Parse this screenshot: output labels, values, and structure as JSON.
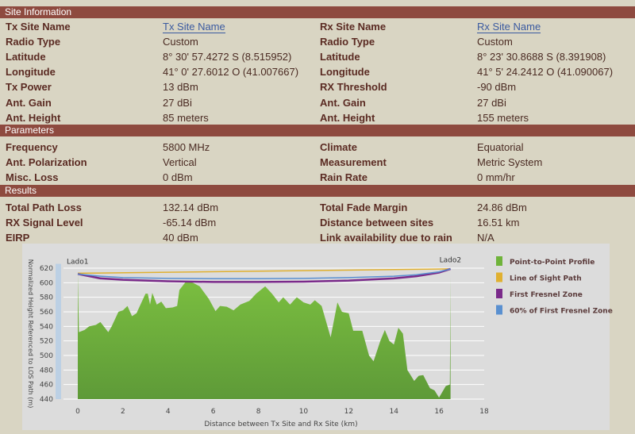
{
  "sections": {
    "site": "Site Information",
    "params": "Parameters",
    "results": "Results"
  },
  "site_rows": [
    {
      "l1": "Tx Site Name",
      "v1": "Tx Site Name",
      "l2": "Rx Site Name",
      "v2": "Rx Site Name",
      "link": true
    },
    {
      "l1": "Radio Type",
      "v1": "Custom",
      "l2": "Radio Type",
      "v2": "Custom"
    },
    {
      "l1": "Latitude",
      "v1": "8° 30' 57.4272 S (8.515952)",
      "l2": "Latitude",
      "v2": "8° 23' 30.8688 S (8.391908)"
    },
    {
      "l1": "Longitude",
      "v1": "41° 0' 27.6012 O (41.007667)",
      "l2": "Longitude",
      "v2": "41° 5' 24.2412 O (41.090067)"
    },
    {
      "l1": "Tx Power",
      "v1": "13 dBm",
      "l2": "RX Threshold",
      "v2": "-90 dBm"
    },
    {
      "l1": "Ant. Gain",
      "v1": "27 dBi",
      "l2": "Ant. Gain",
      "v2": "27 dBi"
    },
    {
      "l1": "Ant. Height",
      "v1": "85 meters",
      "l2": "Ant. Height",
      "v2": "155 meters"
    }
  ],
  "param_rows": [
    {
      "l1": "Frequency",
      "v1": "5800 MHz",
      "l2": "Climate",
      "v2": "Equatorial"
    },
    {
      "l1": "Ant. Polarization",
      "v1": "Vertical",
      "l2": "Measurement",
      "v2": "Metric System"
    },
    {
      "l1": "Misc. Loss",
      "v1": "0 dBm",
      "l2": "Rain Rate",
      "v2": "0 mm/hr"
    }
  ],
  "result_rows": [
    {
      "l1": "Total Path Loss",
      "v1": "132.14 dBm",
      "l2": "Total Fade Margin",
      "v2": "24.86 dBm"
    },
    {
      "l1": "RX Signal Level",
      "v1": "-65.14 dBm",
      "l2": "Distance between sites",
      "v2": "16.51 km"
    },
    {
      "l1": "EIRP",
      "v1": "40 dBm",
      "l2": "Link availability due to rain",
      "v2": "N/A"
    }
  ],
  "chart_data": {
    "type": "area",
    "xlabel": "Distance between Tx Site and Rx Site (km)",
    "ylabel": "Normalized Height Referenced to LOS Path (m)",
    "xlim": [
      0,
      18
    ],
    "ylim": [
      440,
      620
    ],
    "xticks": [
      0,
      2,
      4,
      6,
      8,
      10,
      12,
      14,
      16,
      18
    ],
    "yticks": [
      440,
      460,
      480,
      500,
      520,
      540,
      560,
      580,
      600,
      620
    ],
    "grid": true,
    "legend_placement": "right",
    "annotations": [
      "Lado1",
      "Lado2"
    ],
    "series": [
      {
        "name": "Point-to-Point Profile",
        "color": "#6fb33a",
        "x": [
          0,
          0.05,
          0.3,
          0.5,
          0.8,
          1.0,
          1.2,
          1.35,
          1.5,
          1.8,
          2.0,
          2.2,
          2.4,
          2.6,
          3.0,
          3.1,
          3.2,
          3.3,
          3.5,
          3.7,
          3.9,
          4.2,
          4.4,
          4.5,
          4.8,
          5.1,
          5.4,
          5.8,
          6.1,
          6.3,
          6.6,
          6.9,
          7.2,
          7.6,
          7.9,
          8.3,
          8.6,
          8.9,
          9.1,
          9.4,
          9.7,
          10.0,
          10.3,
          10.5,
          10.8,
          11.2,
          11.5,
          11.7,
          12.0,
          12.2,
          12.6,
          12.9,
          13.1,
          13.4,
          13.6,
          13.8,
          14.0,
          14.2,
          14.4,
          14.6,
          14.9,
          15.1,
          15.3,
          15.6,
          15.8,
          16.0,
          16.3,
          16.48,
          16.51
        ],
        "y": [
          612,
          532,
          535,
          540,
          542,
          546,
          538,
          532,
          540,
          560,
          562,
          568,
          554,
          558,
          585,
          585,
          570,
          586,
          570,
          574,
          565,
          566,
          568,
          590,
          602,
          600,
          595,
          578,
          561,
          568,
          567,
          562,
          570,
          575,
          585,
          595,
          585,
          573,
          580,
          570,
          580,
          573,
          570,
          576,
          568,
          525,
          573,
          560,
          558,
          534,
          534,
          500,
          492,
          520,
          535,
          520,
          515,
          538,
          530,
          480,
          465,
          472,
          473,
          455,
          452,
          442,
          458,
          460,
          610
        ]
      },
      {
        "name": "Line of Sight Path",
        "color": "#e0b030",
        "x": [
          0,
          16.51
        ],
        "y": [
          613,
          619
        ]
      },
      {
        "name": "First Fresnel Zone",
        "color": "#7a2a8a",
        "x": [
          0,
          1,
          2,
          4,
          6,
          8,
          10,
          12,
          14,
          15,
          16,
          16.51
        ],
        "y": [
          612,
          606,
          604,
          602,
          601,
          601,
          601.5,
          603,
          606,
          609,
          614,
          619
        ]
      },
      {
        "name": "60% of First Fresnel Zone",
        "color": "#5a90d0",
        "x": [
          0,
          1,
          2,
          4,
          6,
          8,
          10,
          12,
          14,
          15,
          16,
          16.51
        ],
        "y": [
          612,
          609,
          607,
          606,
          605.5,
          605.5,
          606,
          607,
          609,
          611,
          615,
          619
        ]
      }
    ]
  }
}
